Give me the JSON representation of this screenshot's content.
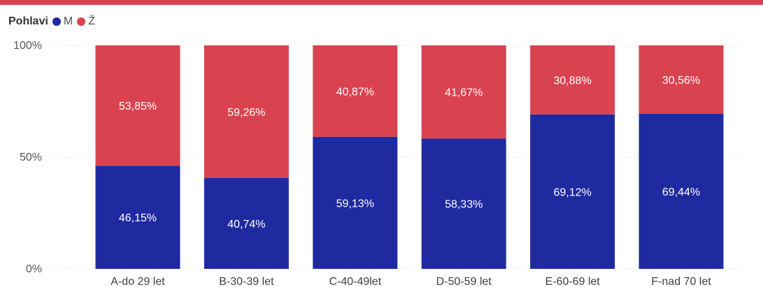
{
  "legend": {
    "title": "Pohlavi",
    "items": [
      {
        "label": "M",
        "color": "#1f2aa0"
      },
      {
        "label": "Ž",
        "color": "#d9434f"
      }
    ]
  },
  "chart_data": {
    "type": "bar",
    "stacked": "percent",
    "categories": [
      "A-do 29 let",
      "B-30-39 let",
      "C-40-49let",
      "D-50-59 let",
      "E-60-69 let",
      "F-nad 70 let"
    ],
    "series": [
      {
        "name": "M",
        "color": "#1f2aa0",
        "values": [
          46.15,
          40.74,
          59.13,
          58.33,
          69.12,
          69.44
        ],
        "labels": [
          "46,15%",
          "40,74%",
          "59,13%",
          "58,33%",
          "69,12%",
          "69,44%"
        ]
      },
      {
        "name": "Ž",
        "color": "#d9434f",
        "values": [
          53.85,
          59.26,
          40.87,
          41.67,
          30.88,
          30.56
        ],
        "labels": [
          "53,85%",
          "59,26%",
          "40,87%",
          "41,67%",
          "30,88%",
          "30,56%"
        ]
      }
    ],
    "yticks": [
      "0%",
      "50%",
      "100%"
    ],
    "ylim": [
      0,
      100
    ],
    "grid": "dotted",
    "legend_position": "top-left"
  }
}
